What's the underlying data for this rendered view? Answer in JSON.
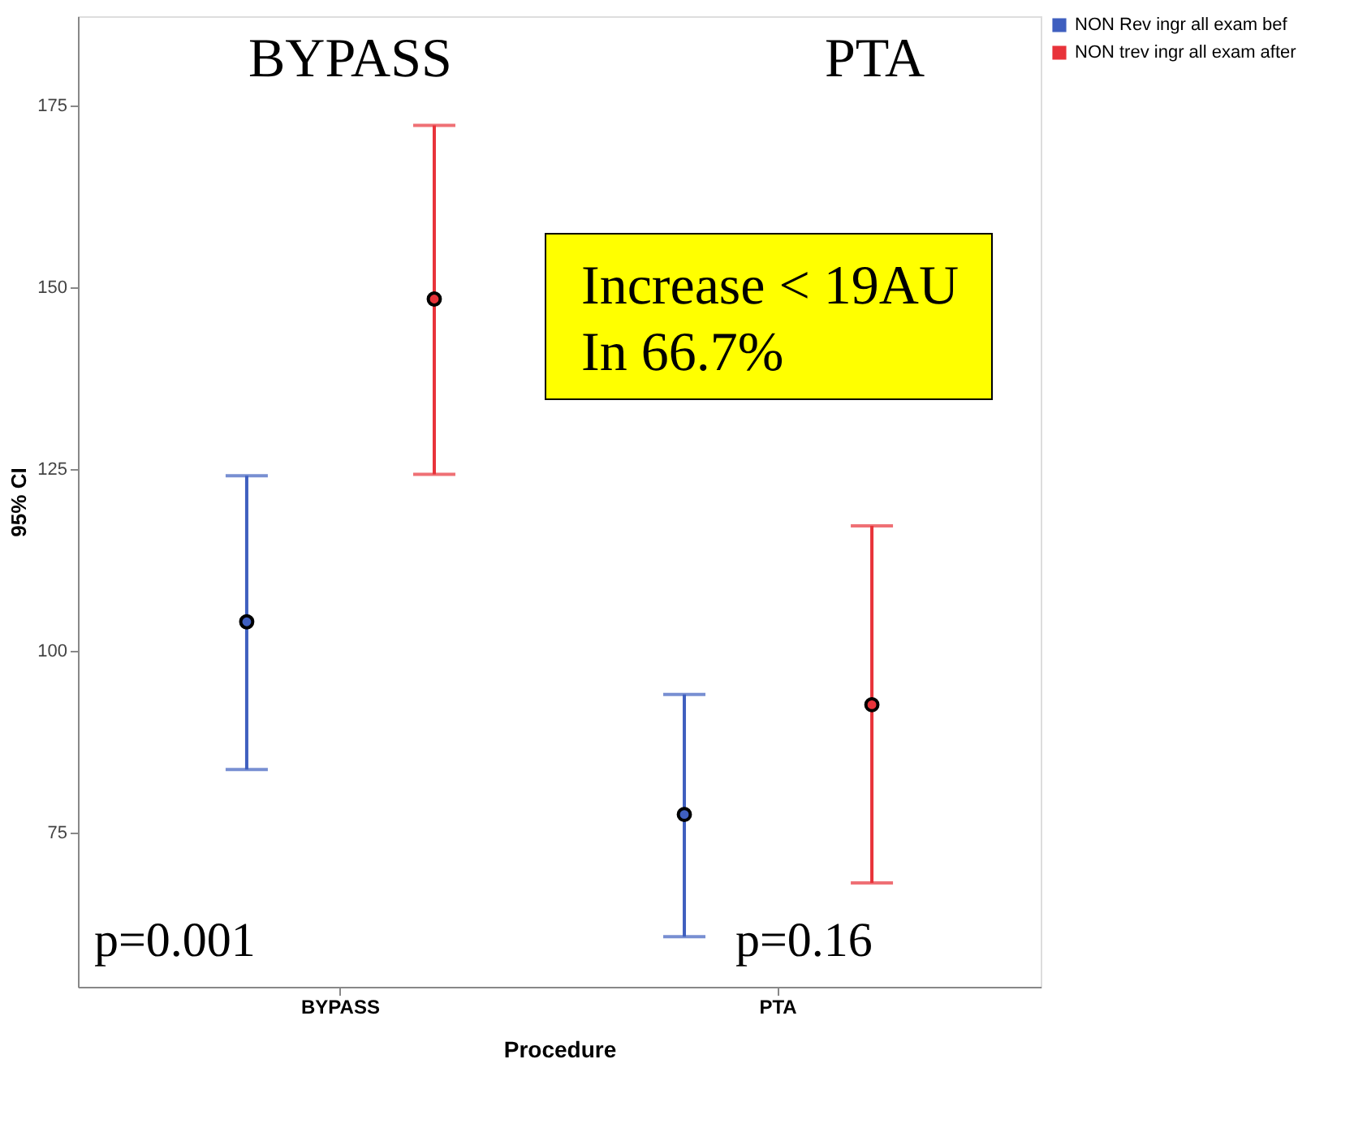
{
  "chart_data": {
    "type": "scatter",
    "xlabel": "Procedure",
    "ylabel": "95% CI",
    "categories": [
      "BYPASS",
      "PTA"
    ],
    "ylim": [
      53.8,
      187.3
    ],
    "yticks": [
      75,
      100,
      125,
      150,
      175
    ],
    "grid": false,
    "legend": "top right",
    "marker": "circle",
    "series": [
      {
        "name": "NON Rev ingr all exam bef",
        "color": "#3f5fbf",
        "x": [
          "BYPASS",
          "PTA"
        ],
        "values": [
          104.0,
          77.5
        ],
        "errors": [
          [
            83.7,
            124.1
          ],
          [
            60.7,
            94.0
          ]
        ]
      },
      {
        "name": "NON trev ingr all exam after",
        "color": "#e8333a",
        "x": [
          "BYPASS",
          "PTA"
        ],
        "values": [
          148.4,
          92.6
        ],
        "errors": [
          [
            124.3,
            172.3
          ],
          [
            68.1,
            117.2
          ]
        ]
      }
    ],
    "annotations": [
      "BYPASS",
      "PTA",
      "Increase < 19AU\nIn 66.7%",
      "p=0.001",
      "p=0.16"
    ]
  }
}
